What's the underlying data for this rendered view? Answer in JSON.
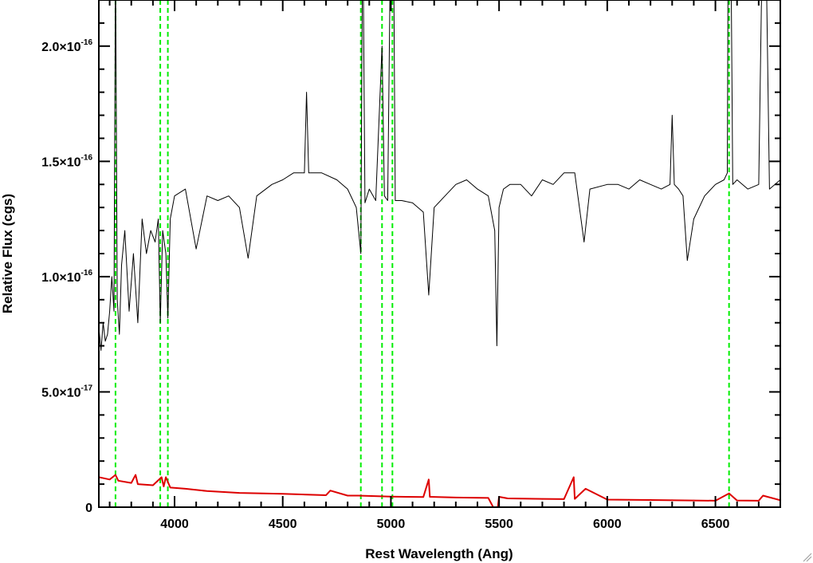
{
  "chart_data": {
    "type": "line",
    "title": "",
    "xlabel": "Rest Wavelength (Ang)",
    "ylabel": "Relative Flux (cgs)",
    "xlim": [
      3650,
      6800
    ],
    "ylim": [
      0,
      2.2e-16
    ],
    "x_ticks": [
      4000,
      4500,
      5000,
      5500,
      6000,
      6500
    ],
    "x_tick_labels": [
      "4000",
      "4500",
      "5000",
      "5500",
      "6000",
      "6500"
    ],
    "y_ticks": [
      {
        "value": 0,
        "mantissa": "0",
        "exponent": ""
      },
      {
        "value": 5e-17,
        "mantissa": "5.0×10",
        "exponent": "-17"
      },
      {
        "value": 1e-16,
        "mantissa": "1.0×10",
        "exponent": "-16"
      },
      {
        "value": 1.5e-16,
        "mantissa": "1.5×10",
        "exponent": "-16"
      },
      {
        "value": 2e-16,
        "mantissa": "2.0×10",
        "exponent": "-16"
      }
    ],
    "grid": false,
    "legend": "none",
    "reference_lines_x": [
      3727,
      3934,
      3969,
      4861,
      4959,
      5007,
      6563
    ],
    "colors": {
      "spectrum": "#000000",
      "error": "#dd0000",
      "reference": "#00ee00",
      "axes": "#000000"
    },
    "series": [
      {
        "role": "spectrum",
        "x": [
          3650,
          3660,
          3670,
          3680,
          3690,
          3700,
          3710,
          3720,
          3727,
          3735,
          3745,
          3755,
          3770,
          3790,
          3810,
          3830,
          3850,
          3870,
          3890,
          3910,
          3925,
          3934,
          3945,
          3960,
          3969,
          3980,
          4000,
          4050,
          4100,
          4150,
          4200,
          4250,
          4300,
          4340,
          4380,
          4450,
          4500,
          4550,
          4600,
          4610,
          4620,
          4680,
          4750,
          4800,
          4840,
          4861,
          4870,
          4880,
          4900,
          4930,
          4959,
          4970,
          4985,
          5007,
          5020,
          5050,
          5100,
          5150,
          5175,
          5200,
          5250,
          5300,
          5350,
          5400,
          5450,
          5480,
          5490,
          5500,
          5520,
          5550,
          5600,
          5650,
          5700,
          5750,
          5800,
          5850,
          5893,
          5920,
          6000,
          6050,
          6100,
          6150,
          6200,
          6250,
          6290,
          6300,
          6310,
          6330,
          6350,
          6370,
          6400,
          6450,
          6500,
          6540,
          6555,
          6563,
          6580,
          6600,
          6650,
          6700,
          6716,
          6731,
          6750,
          6800
        ],
        "y": [
          7.8e-17,
          6.8e-17,
          8e-17,
          7.2e-17,
          7.5e-17,
          8.5e-17,
          1e-16,
          8.5e-17,
          2.4e-16,
          9e-17,
          7.5e-17,
          1.05e-16,
          1.2e-16,
          8.5e-17,
          1.1e-16,
          8e-17,
          1.25e-16,
          1.1e-16,
          1.2e-16,
          1.15e-16,
          1.25e-16,
          8e-17,
          1.2e-16,
          1.1e-16,
          8.2e-17,
          1.25e-16,
          1.35e-16,
          1.38e-16,
          1.12e-16,
          1.35e-16,
          1.33e-16,
          1.35e-16,
          1.3e-16,
          1.08e-16,
          1.35e-16,
          1.4e-16,
          1.42e-16,
          1.45e-16,
          1.45e-16,
          1.8e-16,
          1.45e-16,
          1.45e-16,
          1.42e-16,
          1.38e-16,
          1.3e-16,
          1.1e-16,
          2.6e-16,
          1.32e-16,
          1.38e-16,
          1.33e-16,
          2e-16,
          1.35e-16,
          1.33e-16,
          3.2e-16,
          1.33e-16,
          1.33e-16,
          1.32e-16,
          1.28e-16,
          9.2e-17,
          1.3e-16,
          1.35e-16,
          1.4e-16,
          1.42e-16,
          1.38e-16,
          1.35e-16,
          1.2e-16,
          7e-17,
          1.3e-16,
          1.38e-16,
          1.4e-16,
          1.4e-16,
          1.35e-16,
          1.42e-16,
          1.4e-16,
          1.45e-16,
          1.45e-16,
          1.15e-16,
          1.38e-16,
          1.4e-16,
          1.4e-16,
          1.38e-16,
          1.42e-16,
          1.4e-16,
          1.38e-16,
          1.4e-16,
          1.7e-16,
          1.4e-16,
          1.38e-16,
          1.35e-16,
          1.07e-16,
          1.25e-16,
          1.35e-16,
          1.4e-16,
          1.42e-16,
          1.45e-16,
          3.5e-16,
          1.4e-16,
          1.42e-16,
          1.38e-16,
          1.4e-16,
          2.4e-16,
          2.6e-16,
          1.38e-16,
          1.42e-16
        ]
      },
      {
        "role": "error",
        "x": [
          3650,
          3700,
          3727,
          3740,
          3800,
          3820,
          3830,
          3900,
          3940,
          3950,
          3960,
          3980,
          4050,
          4150,
          4300,
          4500,
          4700,
          4720,
          4800,
          4850,
          5000,
          5150,
          5175,
          5180,
          5300,
          5450,
          5490,
          5500,
          5540,
          5700,
          5800,
          5845,
          5850,
          5900,
          6000,
          6200,
          6400,
          6500,
          6563,
          6600,
          6700,
          6720,
          6800
        ],
        "y": [
          1.3e-17,
          1.2e-17,
          1.4e-17,
          1.15e-17,
          1.05e-17,
          1.4e-17,
          1e-17,
          9.5e-18,
          1.3e-17,
          9e-18,
          1.3e-17,
          8.5e-18,
          8e-18,
          7e-18,
          6.2e-18,
          5.8e-18,
          5.2e-18,
          7.2e-18,
          5e-18,
          5e-18,
          4.6e-18,
          4.4e-18,
          1.2e-17,
          4.5e-18,
          4.2e-18,
          4e-18,
          -3e-18,
          4.5e-18,
          3.8e-18,
          3.6e-18,
          3.5e-18,
          1.3e-17,
          3.6e-18,
          8e-18,
          3.3e-18,
          3.1e-18,
          2.9e-18,
          2.8e-18,
          6e-18,
          2.9e-18,
          2.8e-18,
          5e-18,
          3e-18
        ]
      }
    ]
  }
}
